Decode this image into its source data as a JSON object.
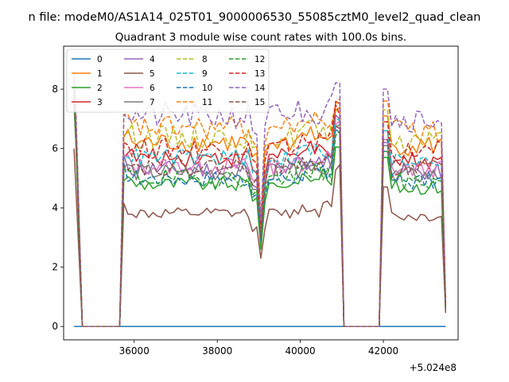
{
  "chart_data": {
    "type": "line",
    "suptitle": "n file: modeM0/AS1A14_025T01_9000006530_55085cztM0_level2_quad_clean",
    "title": "Quadrant 3 module wise count rates with 100.0s bins.",
    "xlabel": "",
    "ylabel": "",
    "x_offset_label": "+5.024e8",
    "xlim": [
      34300,
      43800
    ],
    "ylim": [
      -0.45,
      9.45
    ],
    "xticks": [
      36000,
      38000,
      40000,
      42000
    ],
    "xtick_labels": [
      "36000",
      "38000",
      "40000",
      "42000"
    ],
    "yticks": [
      0,
      2,
      4,
      6,
      8
    ],
    "ytick_labels": [
      "0",
      "2",
      "4",
      "6",
      "8"
    ],
    "legend_position": "upper-left",
    "segments_x": [
      [
        34550,
        34750
      ],
      [
        35650,
        41050
      ],
      [
        41900,
        43500
      ]
    ],
    "gap_x": [
      [
        34750,
        35650
      ],
      [
        41050,
        41900
      ]
    ],
    "bin_width": 100,
    "series": [
      {
        "name": "0",
        "color": "#1f77b4",
        "style": "solid",
        "start": 0,
        "level": 0,
        "noise": 0,
        "spike": 0,
        "dip": 0
      },
      {
        "name": "1",
        "color": "#ff7f0e",
        "style": "solid",
        "start": 8.2,
        "level": 6.2,
        "noise": 0.35,
        "spike": 7.2,
        "dip": 3.2
      },
      {
        "name": "2",
        "color": "#2ca02c",
        "style": "solid",
        "start": 7.6,
        "level": 4.8,
        "noise": 0.25,
        "spike": 6.2,
        "dip": 2.6
      },
      {
        "name": "3",
        "color": "#d62728",
        "style": "solid",
        "start": 7.7,
        "level": 5.7,
        "noise": 0.3,
        "spike": 7.6,
        "dip": 3.4
      },
      {
        "name": "4",
        "color": "#9467bd",
        "style": "solid",
        "start": 7.8,
        "level": 5.3,
        "noise": 0.3,
        "spike": 7.0,
        "dip": 3.0
      },
      {
        "name": "5",
        "color": "#8c564b",
        "style": "solid",
        "start": 6.0,
        "level": 3.8,
        "noise": 0.2,
        "spike": 5.4,
        "dip": 2.3
      },
      {
        "name": "6",
        "color": "#e377c2",
        "style": "solid",
        "start": 7.9,
        "level": 5.4,
        "noise": 0.3,
        "spike": 6.8,
        "dip": 3.0
      },
      {
        "name": "7",
        "color": "#7f7f7f",
        "style": "solid",
        "start": 7.5,
        "level": 5.2,
        "noise": 0.3,
        "spike": 6.6,
        "dip": 2.9
      },
      {
        "name": "8",
        "color": "#bcbd22",
        "style": "dashed",
        "start": 8.3,
        "level": 6.4,
        "noise": 0.4,
        "spike": 7.4,
        "dip": 3.3
      },
      {
        "name": "9",
        "color": "#17becf",
        "style": "dashed",
        "start": 8.0,
        "level": 5.7,
        "noise": 0.3,
        "spike": 7.0,
        "dip": 3.1
      },
      {
        "name": "10",
        "color": "#1f77b4",
        "style": "dashed",
        "start": 7.9,
        "level": 5.0,
        "noise": 0.3,
        "spike": 6.5,
        "dip": 2.8
      },
      {
        "name": "11",
        "color": "#ff7f0e",
        "style": "dashed",
        "start": 8.4,
        "level": 6.7,
        "noise": 0.4,
        "spike": 7.6,
        "dip": 3.4
      },
      {
        "name": "12",
        "color": "#2ca02c",
        "style": "dashed",
        "start": 7.5,
        "level": 5.0,
        "noise": 0.3,
        "spike": 6.4,
        "dip": 2.7
      },
      {
        "name": "13",
        "color": "#d62728",
        "style": "dashed",
        "start": 8.0,
        "level": 6.0,
        "noise": 0.35,
        "spike": 7.3,
        "dip": 3.3
      },
      {
        "name": "14",
        "color": "#9467bd",
        "style": "dashed",
        "start": 8.6,
        "level": 7.1,
        "noise": 0.45,
        "spike": 8.3,
        "dip": 3.6
      },
      {
        "name": "15",
        "color": "#8c564b",
        "style": "dashed",
        "start": 7.8,
        "level": 5.4,
        "noise": 0.3,
        "spike": 6.7,
        "dip": 3.0
      }
    ]
  }
}
